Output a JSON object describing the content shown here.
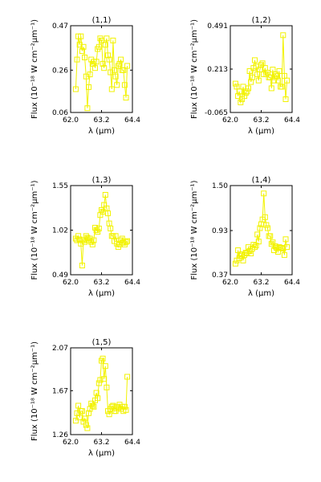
{
  "colors": {
    "series": "#f2f200",
    "axes": "#000000"
  },
  "labels": {
    "x": "λ (μm)",
    "y": "Flux (10⁻¹⁸ W cm⁻²μm⁻¹)"
  },
  "chart_data": [
    {
      "type": "line",
      "title": "(1,1)",
      "xticks": [
        "62.0",
        "63.2",
        "64.4"
      ],
      "yticks": [
        "0.06",
        "0.26",
        "0.47"
      ],
      "xlim": [
        62.0,
        64.4
      ],
      "ylim": [
        0.06,
        0.47
      ],
      "x": [
        62.2,
        62.25,
        62.3,
        62.35,
        62.4,
        62.45,
        62.5,
        62.55,
        62.6,
        62.65,
        62.7,
        62.75,
        62.8,
        62.85,
        62.9,
        62.95,
        63.0,
        63.05,
        63.1,
        63.15,
        63.2,
        63.25,
        63.3,
        63.35,
        63.4,
        63.45,
        63.5,
        63.55,
        63.6,
        63.65,
        63.7,
        63.75,
        63.8,
        63.85,
        63.9,
        63.95,
        64.0,
        64.05,
        64.1,
        64.15,
        64.2
      ],
      "y": [
        0.17,
        0.31,
        0.42,
        0.38,
        0.42,
        0.35,
        0.37,
        0.32,
        0.23,
        0.08,
        0.18,
        0.24,
        0.31,
        0.29,
        0.3,
        0.27,
        0.3,
        0.36,
        0.37,
        0.41,
        0.4,
        0.29,
        0.27,
        0.38,
        0.41,
        0.33,
        0.31,
        0.25,
        0.17,
        0.4,
        0.26,
        0.23,
        0.19,
        0.28,
        0.29,
        0.31,
        0.26,
        0.26,
        0.19,
        0.13,
        0.28
      ],
      "grid": false
    },
    {
      "type": "line",
      "title": "(1,2)",
      "xticks": [
        "62.0",
        "63.2",
        "64.4"
      ],
      "yticks": [
        "-0.065",
        "0.213",
        "0.491"
      ],
      "xlim": [
        62.0,
        64.4
      ],
      "ylim": [
        -0.065,
        0.491
      ],
      "x": [
        62.2,
        62.25,
        62.3,
        62.35,
        62.4,
        62.45,
        62.5,
        62.55,
        62.6,
        62.65,
        62.7,
        62.75,
        62.8,
        62.85,
        62.9,
        62.95,
        63.0,
        63.05,
        63.1,
        63.15,
        63.2,
        63.25,
        63.3,
        63.35,
        63.4,
        63.45,
        63.5,
        63.55,
        63.6,
        63.65,
        63.7,
        63.75,
        63.8,
        63.85,
        63.9,
        63.95,
        64.0,
        64.05,
        64.1,
        64.15,
        64.2
      ],
      "y": [
        0.12,
        0.1,
        0.04,
        0.07,
        0.0,
        0.02,
        0.1,
        0.04,
        0.06,
        0.07,
        0.09,
        0.2,
        0.13,
        0.16,
        0.22,
        0.27,
        0.23,
        0.18,
        0.14,
        0.21,
        0.24,
        0.25,
        0.18,
        0.22,
        0.18,
        0.19,
        0.16,
        0.16,
        0.09,
        0.21,
        0.14,
        0.18,
        0.17,
        0.14,
        0.2,
        0.1,
        0.1,
        0.43,
        0.17,
        0.02,
        0.14
      ],
      "grid": false
    },
    {
      "type": "line",
      "title": "(1,3)",
      "xticks": [
        "62.0",
        "63.2",
        "64.4"
      ],
      "yticks": [
        "0.49",
        "1.02",
        "1.55"
      ],
      "xlim": [
        62.0,
        64.4
      ],
      "ylim": [
        0.49,
        1.55
      ],
      "x": [
        62.2,
        62.25,
        62.3,
        62.35,
        62.4,
        62.45,
        62.5,
        62.55,
        62.6,
        62.65,
        62.7,
        62.75,
        62.8,
        62.85,
        62.9,
        62.95,
        63.0,
        63.05,
        63.1,
        63.15,
        63.2,
        63.25,
        63.3,
        63.35,
        63.4,
        63.45,
        63.5,
        63.55,
        63.6,
        63.65,
        63.7,
        63.75,
        63.8,
        63.85,
        63.9,
        63.95,
        64.0,
        64.05,
        64.1,
        64.15,
        64.2
      ],
      "y": [
        0.92,
        0.9,
        0.95,
        0.91,
        0.86,
        0.6,
        0.9,
        0.88,
        0.95,
        0.93,
        0.9,
        0.92,
        0.88,
        0.85,
        0.9,
        1.05,
        1.02,
        1.0,
        1.04,
        1.2,
        1.26,
        1.24,
        1.32,
        1.44,
        1.28,
        1.22,
        1.1,
        1.04,
        0.95,
        0.95,
        0.89,
        0.95,
        0.86,
        0.82,
        0.85,
        0.9,
        0.92,
        0.87,
        0.85,
        0.88,
        0.89
      ],
      "grid": false
    },
    {
      "type": "line",
      "title": "(1,4)",
      "xticks": [
        "62.0",
        "63.2",
        "64.4"
      ],
      "yticks": [
        "0.37",
        "0.93",
        "1.50"
      ],
      "xlim": [
        62.0,
        64.4
      ],
      "ylim": [
        0.37,
        1.5
      ],
      "x": [
        62.2,
        62.25,
        62.3,
        62.35,
        62.4,
        62.45,
        62.5,
        62.55,
        62.6,
        62.65,
        62.7,
        62.75,
        62.8,
        62.85,
        62.9,
        62.95,
        63.0,
        63.05,
        63.1,
        63.15,
        63.2,
        63.25,
        63.3,
        63.35,
        63.4,
        63.45,
        63.5,
        63.55,
        63.6,
        63.65,
        63.7,
        63.75,
        63.8,
        63.85,
        63.9,
        63.95,
        64.0,
        64.05,
        64.1,
        64.15,
        64.2
      ],
      "y": [
        0.51,
        0.55,
        0.68,
        0.58,
        0.61,
        0.63,
        0.55,
        0.62,
        0.65,
        0.64,
        0.72,
        0.67,
        0.64,
        0.7,
        0.75,
        0.72,
        0.74,
        0.88,
        0.79,
        0.96,
        1.01,
        1.07,
        1.4,
        1.1,
        1.0,
        0.96,
        0.86,
        0.86,
        0.76,
        0.78,
        0.68,
        0.73,
        0.71,
        0.66,
        0.72,
        0.71,
        0.71,
        0.7,
        0.62,
        0.82,
        0.72
      ],
      "grid": false
    },
    {
      "type": "line",
      "title": "(1,5)",
      "xticks": [
        "62.0",
        "63.2",
        "64.4"
      ],
      "yticks": [
        "1.26",
        "1.67",
        "2.07"
      ],
      "xlim": [
        62.0,
        64.4
      ],
      "ylim": [
        1.26,
        2.07
      ],
      "x": [
        62.2,
        62.25,
        62.3,
        62.35,
        62.4,
        62.45,
        62.5,
        62.55,
        62.6,
        62.65,
        62.7,
        62.75,
        62.8,
        62.85,
        62.9,
        62.95,
        63.0,
        63.05,
        63.1,
        63.15,
        63.2,
        63.25,
        63.3,
        63.35,
        63.4,
        63.45,
        63.5,
        63.55,
        63.6,
        63.65,
        63.7,
        63.75,
        63.8,
        63.85,
        63.9,
        63.95,
        64.0,
        64.05,
        64.1,
        64.15,
        64.2
      ],
      "y": [
        1.39,
        1.46,
        1.53,
        1.42,
        1.48,
        1.48,
        1.38,
        1.41,
        1.35,
        1.32,
        1.46,
        1.5,
        1.55,
        1.53,
        1.52,
        1.58,
        1.65,
        1.6,
        1.74,
        1.77,
        1.95,
        1.97,
        1.78,
        1.9,
        1.7,
        1.48,
        1.45,
        1.5,
        1.52,
        1.53,
        1.48,
        1.48,
        1.52,
        1.51,
        1.54,
        1.5,
        1.52,
        1.48,
        1.52,
        1.49,
        1.8
      ],
      "grid": false
    }
  ]
}
